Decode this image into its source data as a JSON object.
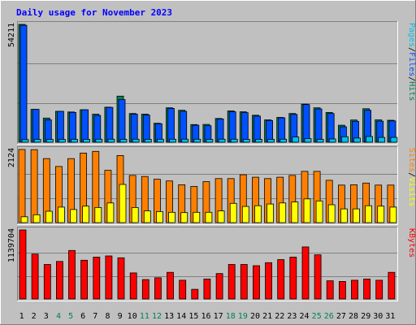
{
  "chart_data": {
    "type": "bar",
    "title": "Daily usage for November 2023",
    "categories": [
      "1",
      "2",
      "3",
      "4",
      "5",
      "6",
      "7",
      "8",
      "9",
      "10",
      "11",
      "12",
      "13",
      "14",
      "15",
      "16",
      "17",
      "18",
      "19",
      "20",
      "21",
      "22",
      "23",
      "24",
      "25",
      "26",
      "27",
      "28",
      "29",
      "30",
      "31"
    ],
    "weekend_days": [
      "4",
      "5",
      "11",
      "12",
      "18",
      "19",
      "25",
      "26"
    ],
    "panels": [
      {
        "name": "pages-files-hits",
        "max_label": "54211",
        "max": 54211,
        "right_label": [
          "Pages",
          "/",
          "Files",
          "/",
          "Hits"
        ],
        "series": [
          {
            "name": "Hits",
            "color": "#00805c",
            "values": [
              54211,
              15100,
              11100,
              14200,
              13900,
              14900,
              12900,
              16100,
              21200,
              13200,
              12900,
              8700,
              15800,
              14700,
              8100,
              8200,
              10900,
              14400,
              14000,
              12400,
              10300,
              11400,
              13200,
              17500,
              15800,
              13700,
              7800,
              10200,
              15400,
              10300,
              10100
            ]
          },
          {
            "name": "Files",
            "color": "#0050ff",
            "values": [
              53800,
              15100,
              10300,
              14200,
              13700,
              14900,
              12300,
              16000,
              19600,
              12900,
              12500,
              8500,
              15500,
              14200,
              7800,
              7600,
              10700,
              14000,
              13600,
              12000,
              10000,
              11200,
              12800,
              17300,
              15300,
              13200,
              7100,
              9600,
              14700,
              9700,
              9800
            ]
          },
          {
            "name": "Pages",
            "color": "#00c0e8",
            "values": [
              1200,
              1300,
              1300,
              1300,
              1300,
              1300,
              1400,
              1400,
              1300,
              1400,
              1300,
              1400,
              1400,
              1400,
              1400,
              1300,
              1400,
              1400,
              1300,
              1300,
              1300,
              1400,
              2400,
              1700,
              1300,
              1500,
              2500,
              1900,
              2600,
              2200,
              2200
            ]
          }
        ]
      },
      {
        "name": "visits-sites",
        "max_label": "2124",
        "max": 2124,
        "right_label": [
          "Sites",
          "/",
          "Visits"
        ],
        "series": [
          {
            "name": "Visits",
            "color": "#ff8000",
            "values": [
              2124,
              2120,
              1860,
              1630,
              1860,
              2020,
              2070,
              1520,
              1950,
              1370,
              1340,
              1260,
              1210,
              1100,
              1050,
              1190,
              1280,
              1280,
              1390,
              1320,
              1280,
              1320,
              1370,
              1490,
              1490,
              1230,
              1090,
              1100,
              1150,
              1090,
              1090
            ]
          },
          {
            "name": "Sites",
            "color": "#ffff00",
            "values": [
              170,
              230,
              330,
              450,
              380,
              480,
              440,
              570,
              1110,
              440,
              340,
              320,
              300,
              290,
              300,
              300,
              340,
              560,
              470,
              490,
              540,
              570,
              600,
              690,
              630,
              520,
              400,
              400,
              490,
              480,
              450
            ]
          }
        ]
      },
      {
        "name": "kbytes",
        "max_label": "1139704",
        "max": 1139704,
        "right_label": [
          "KBytes"
        ],
        "series": [
          {
            "name": "KBytes",
            "color": "#ff0000",
            "values": [
              1139704,
              740000,
              570000,
              620000,
              800000,
              640000,
              690000,
              710000,
              680000,
              430000,
              320000,
              350000,
              440000,
              310000,
              160000,
              330000,
              420000,
              570000,
              570000,
              550000,
              600000,
              650000,
              690000,
              860000,
              730000,
              300000,
              290000,
              310000,
              330000,
              310000,
              440000
            ]
          }
        ]
      }
    ]
  }
}
